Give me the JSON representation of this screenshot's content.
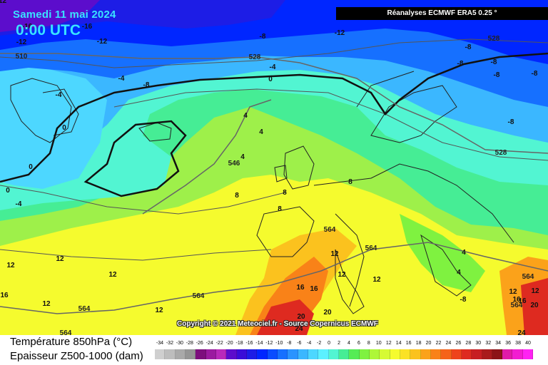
{
  "header": {
    "date": "Samedi 11 mai 2024",
    "time": "0:00 UTC",
    "source": "Réanalyses ECMWF ERA5 0.25 °"
  },
  "copyright": "Copyright © 2021 Meteociel.fr - Source Copernicus ECMWF",
  "legend": {
    "temperature_label": "Température 850hPa (°C)",
    "thickness_label": "Epaisseur Z500-1000 (dam)",
    "scale_ticks": [
      "-34",
      "-32",
      "-30",
      "-28",
      "-26",
      "-24",
      "-22",
      "-20",
      "-18",
      "-16",
      "-14",
      "-12",
      "-10",
      "-8",
      "-6",
      "-4",
      "-2",
      "0",
      "2",
      "4",
      "6",
      "8",
      "10",
      "12",
      "14",
      "16",
      "18",
      "20",
      "22",
      "24",
      "26",
      "28",
      "30",
      "32",
      "34",
      "36",
      "38",
      "40"
    ],
    "scale_colors": [
      "#cfcfcf",
      "#bdbdbd",
      "#a9a9a9",
      "#959595",
      "#7d0e7d",
      "#9b1aa0",
      "#b929bb",
      "#5c0dcc",
      "#3a0dd8",
      "#1d1de6",
      "#0026ff",
      "#0a4cff",
      "#1670ff",
      "#2a93ff",
      "#3bb7ff",
      "#4dd7ff",
      "#5cf0ff",
      "#52f5d2",
      "#46ed95",
      "#55ec55",
      "#7ff240",
      "#aef738",
      "#d6fa35",
      "#f5fb2e",
      "#fbe224",
      "#fbc21e",
      "#fba21a",
      "#f98218",
      "#f56319",
      "#ee431c",
      "#de2a20",
      "#c71e22",
      "#a91a1c",
      "#8c1316",
      "#e01aa8",
      "#f21cd1",
      "#ff22f3"
    ]
  },
  "map": {
    "isotherm_labels": [
      {
        "text": "-12"
      },
      {
        "text": "-16"
      },
      {
        "text": "-12"
      },
      {
        "text": "-16"
      },
      {
        "text": "-12"
      },
      {
        "text": "-8"
      },
      {
        "text": "-12"
      },
      {
        "text": "-8"
      },
      {
        "text": "-8"
      },
      {
        "text": "-8"
      },
      {
        "text": "-8"
      },
      {
        "text": "-8"
      },
      {
        "text": "-8"
      },
      {
        "text": "-4"
      },
      {
        "text": "-4"
      },
      {
        "text": "-8"
      },
      {
        "text": "-4"
      },
      {
        "text": "0"
      },
      {
        "text": "0"
      },
      {
        "text": "0"
      },
      {
        "text": "4"
      },
      {
        "text": "4"
      },
      {
        "text": "4"
      },
      {
        "text": "0"
      },
      {
        "text": "-4"
      },
      {
        "text": "8"
      },
      {
        "text": "8"
      },
      {
        "text": "8"
      },
      {
        "text": "8"
      },
      {
        "text": "12"
      },
      {
        "text": "12"
      },
      {
        "text": "12"
      },
      {
        "text": "12"
      },
      {
        "text": "12"
      },
      {
        "text": "12"
      },
      {
        "text": "12"
      },
      {
        "text": "16"
      },
      {
        "text": "16"
      },
      {
        "text": "16"
      },
      {
        "text": "20"
      },
      {
        "text": "20"
      },
      {
        "text": "24"
      },
      {
        "text": "12"
      },
      {
        "text": "16"
      },
      {
        "text": "20"
      },
      {
        "text": "24"
      },
      {
        "text": "-8"
      },
      {
        "text": "4"
      },
      {
        "text": "4"
      },
      {
        "text": "12"
      },
      {
        "text": "12"
      },
      {
        "text": "16"
      }
    ],
    "thickness_labels": [
      {
        "text": "510"
      },
      {
        "text": "528"
      },
      {
        "text": "528"
      },
      {
        "text": "528"
      },
      {
        "text": "546"
      },
      {
        "text": "564"
      },
      {
        "text": "564"
      },
      {
        "text": "564"
      },
      {
        "text": "564"
      },
      {
        "text": "564"
      },
      {
        "text": "564"
      },
      {
        "text": "564"
      }
    ],
    "colors": {
      "deep_purple": "#7d0e7d",
      "blue": "#0a4cff",
      "cyan": "#4dd7ff",
      "green": "#55ec55",
      "yellow": "#f5fb2e",
      "orange": "#fba21a",
      "red": "#de2a20"
    }
  }
}
